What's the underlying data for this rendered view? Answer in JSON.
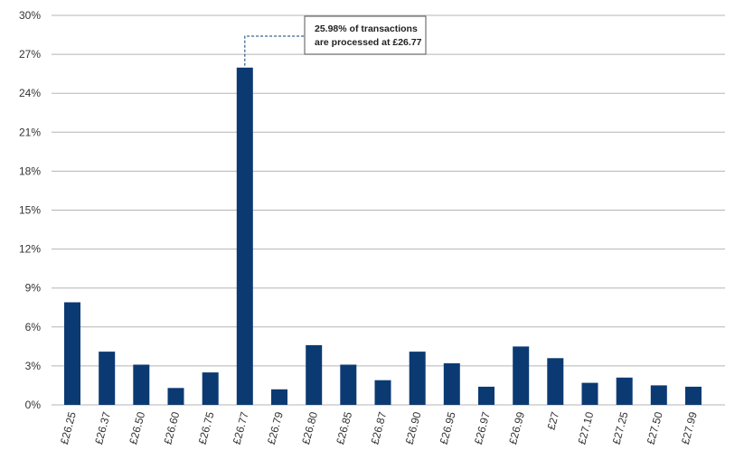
{
  "chart_data": {
    "type": "bar",
    "categories": [
      "£26.25",
      "£26.37",
      "£26.50",
      "£26.60",
      "£26.75",
      "£26.77",
      "£26.79",
      "£26.80",
      "£26.85",
      "£26.87",
      "£26.90",
      "£26.95",
      "£26.97",
      "£26.99",
      "£27",
      "£27.10",
      "£27.25",
      "£27.50",
      "£27.99"
    ],
    "values": [
      7.9,
      4.1,
      3.1,
      1.3,
      2.5,
      25.98,
      1.2,
      4.6,
      3.1,
      1.9,
      4.1,
      3.2,
      1.4,
      4.5,
      3.6,
      1.7,
      2.1,
      1.5,
      1.4
    ],
    "y_ticks": [
      "0%",
      "3%",
      "6%",
      "9%",
      "12%",
      "15%",
      "18%",
      "21%",
      "24%",
      "27%",
      "30%"
    ],
    "ylim": [
      0,
      30
    ],
    "grid": true,
    "bar_color": "#0b3a73",
    "grid_color": "#b5b5b5",
    "annotation": {
      "category": "£26.77",
      "lines": [
        "25.98% of transactions",
        "are processed at £26.77"
      ]
    }
  }
}
